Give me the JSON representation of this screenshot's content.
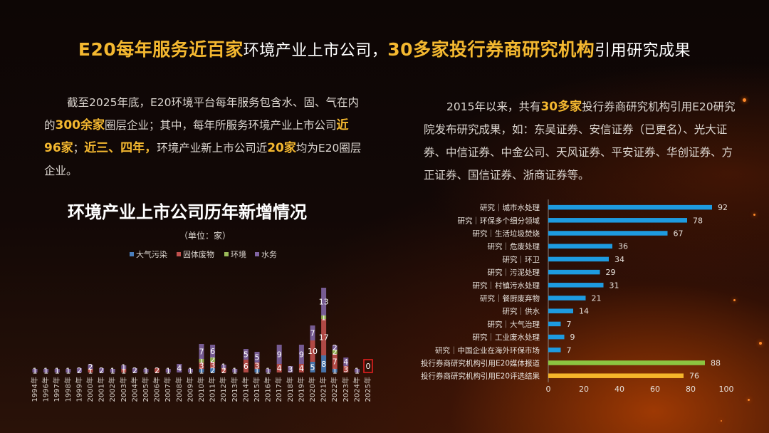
{
  "headline": {
    "part1": "E20每年服务近百家",
    "part2": "环境产业上市公司，",
    "part3": "30多家投行券商研究机构",
    "part4": "引用研究成果"
  },
  "left_paragraph": {
    "t1": "截至2025年底，E20环境平台每年服务包含水、固、气在内的",
    "em1": "300余家",
    "t2": "圈层企业；其中，每年所服务环境产业上市公司",
    "em2": "近96家",
    "t3": "；",
    "em3": "近三、四年，",
    "t4": "环境产业新上市公司近",
    "em4": "20家",
    "t5": "均为E20圈层企业。"
  },
  "right_paragraph": {
    "t1": "2015年以来，共有",
    "em1": "30多家",
    "t2": "投行券商研究机构引用E20研究院发布研究成果，如：东吴证券、安信证券（已更名）、光大证券、中信证券、中金公司、天风证券、平安证券、华创证券、方正证券、国信证券、浙商证券等。"
  },
  "chart_title": "环境产业上市公司历年新增情况",
  "chart_unit": "（单位：家）",
  "chart_data": [
    {
      "type": "bar",
      "stacked": true,
      "title": "环境产业上市公司历年新增情况",
      "subtitle": "（单位：家）",
      "legend_position": "top",
      "categories": [
        "1994年",
        "1996年",
        "1997年",
        "1998年",
        "1999年",
        "2000年",
        "2001年",
        "2002年",
        "2003年",
        "2004年",
        "2005年",
        "2006年",
        "2007年",
        "2008年",
        "2009年",
        "2010年",
        "2011年",
        "2012年",
        "2013年",
        "2014年",
        "2015年",
        "2016年",
        "2017年",
        "2018年",
        "2019年",
        "2020年",
        "2021年",
        "2022年",
        "2023年",
        "2024年",
        "2025年"
      ],
      "series": [
        {
          "name": "大气污染",
          "color": "#4a7ebb",
          "values": [
            0,
            0,
            0,
            0,
            0,
            0,
            0,
            0,
            0,
            0,
            0,
            0,
            0,
            0,
            0,
            1,
            2,
            0,
            0,
            0,
            1,
            0,
            0,
            0,
            0,
            5,
            8,
            1,
            0,
            0,
            0
          ]
        },
        {
          "name": "固体废物",
          "color": "#c0504d",
          "values": [
            0,
            0,
            0,
            0,
            0,
            1,
            0,
            0,
            1,
            0,
            0,
            2,
            0,
            0,
            0,
            3,
            3,
            2,
            0,
            6,
            3,
            0,
            4,
            0,
            4,
            10,
            17,
            7,
            3,
            0,
            0
          ]
        },
        {
          "name": "环境",
          "color": "#9bbb59",
          "values": [
            0,
            0,
            0,
            0,
            0,
            0,
            0,
            0,
            0,
            0,
            0,
            0,
            0,
            0,
            0,
            1,
            2,
            0,
            0,
            0,
            0,
            0,
            0,
            0,
            0,
            0,
            1,
            2,
            0,
            0,
            0
          ]
        },
        {
          "name": "水务",
          "color": "#8064a2",
          "values": [
            1,
            1,
            1,
            1,
            2,
            2,
            2,
            1,
            1,
            2,
            1,
            0,
            1,
            4,
            1,
            7,
            6,
            1,
            1,
            5,
            5,
            1,
            9,
            3,
            9,
            7,
            13,
            2,
            4,
            1,
            0
          ]
        }
      ],
      "highlight_category": "2025年",
      "highlight_label": "0"
    },
    {
      "type": "bar",
      "orientation": "horizontal",
      "categories": [
        "研究｜城市水处理",
        "研究｜环保多个细分领域",
        "研究｜生活垃圾焚烧",
        "研究｜危废处理",
        "研究｜环卫",
        "研究｜污泥处理",
        "研究｜村镇污水处理",
        "研究｜餐厨废弃物",
        "研究｜供水",
        "研究｜大气治理",
        "研究｜工业废水处理",
        "研究｜中国企业在海外环保市场",
        "投行券商研究机构引用E20媒体报道",
        "投行券商研究机构引用E20评选结果"
      ],
      "values": [
        92,
        78,
        67,
        36,
        34,
        29,
        31,
        21,
        14,
        7,
        9,
        7,
        88,
        76
      ],
      "colors": [
        "#1e9be0",
        "#1e9be0",
        "#1e9be0",
        "#1e9be0",
        "#1e9be0",
        "#1e9be0",
        "#1e9be0",
        "#1e9be0",
        "#1e9be0",
        "#1e9be0",
        "#1e9be0",
        "#1e9be0",
        "#8cc540",
        "#f5b52a"
      ],
      "xlim": [
        0,
        100
      ],
      "xticks": [
        "0",
        "20",
        "40",
        "60",
        "80",
        "100"
      ]
    }
  ]
}
